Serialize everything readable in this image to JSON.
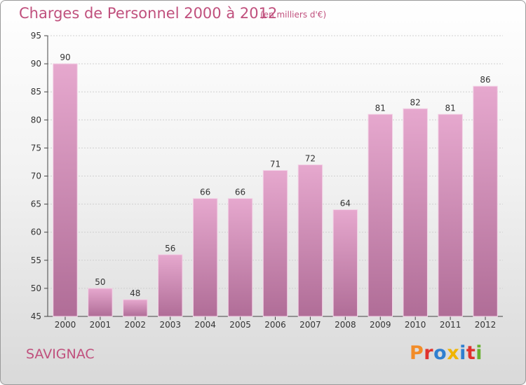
{
  "header": {
    "title": "Charges de Personnel 2000 à 2012",
    "subtitle": "(en milliers d'€)"
  },
  "footer": {
    "place": "SAVIGNAC",
    "logo": [
      "P",
      "r",
      "o",
      "x",
      "i",
      "t",
      "i"
    ]
  },
  "colors": {
    "title": "#c0507d",
    "bar_top": "#e6a8ce",
    "bar_bottom": "#b06d97",
    "logo": [
      "#f28c28",
      "#e0322d",
      "#2f7fd0",
      "#f0b400",
      "#2f7fd0",
      "#e0322d",
      "#68b030"
    ]
  },
  "chart_data": {
    "type": "bar",
    "title": "Charges de Personnel 2000 à 2012",
    "subtitle": "(en milliers d'€)",
    "categories": [
      "2000",
      "2001",
      "2002",
      "2003",
      "2004",
      "2005",
      "2006",
      "2007",
      "2008",
      "2009",
      "2010",
      "2011",
      "2012"
    ],
    "values": [
      90,
      50,
      48,
      56,
      66,
      66,
      71,
      72,
      64,
      81,
      82,
      81,
      86
    ],
    "ylim": [
      45,
      95
    ],
    "yticks": [
      45,
      50,
      55,
      60,
      65,
      70,
      75,
      80,
      85,
      90,
      95
    ],
    "grid": true,
    "legend": "none"
  }
}
